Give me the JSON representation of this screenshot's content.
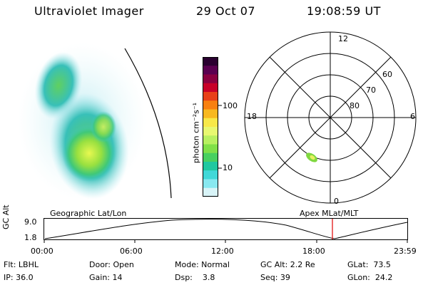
{
  "header": {
    "title": "Ultraviolet Imager",
    "date": "29 Oct 07",
    "time": "19:08:59 UT"
  },
  "colorbar": {
    "label": "photon cm⁻²s⁻¹",
    "ticks": [
      "100",
      "10"
    ],
    "colors": [
      "#2a0030",
      "#5a0050",
      "#8a0040",
      "#c80028",
      "#e84018",
      "#f88010",
      "#f8b820",
      "#f8e848",
      "#e8f870",
      "#b8f060",
      "#80e048",
      "#48d060",
      "#20c8a0",
      "#40d8d8",
      "#88e8f0",
      "#d8f4f8"
    ]
  },
  "polar": {
    "hour_labels": {
      "top": "12",
      "left": "18",
      "right": "6",
      "bottom": "0"
    },
    "lat_labels": [
      "60",
      "70",
      "80"
    ]
  },
  "geo_label": "Geographic Lat/Lon",
  "apex_label": "Apex MLat/MLT",
  "timeline": {
    "y_axis_label": "GC Alt",
    "y_ticks": [
      "9.0",
      "1.8"
    ],
    "x_ticks": [
      "00:00",
      "06:00",
      "12:00",
      "18:00",
      "23:59"
    ],
    "current_time_color": "#e00000"
  },
  "info": {
    "flt": "Flt: LBHL",
    "ip": "IP: 36.0",
    "door": "Door: Open",
    "gain": "Gain: 14",
    "mode": "Mode: Normal",
    "dsp": "Dsp:    3.8",
    "gcalt": "GC Alt: 2.2 Re",
    "seq": "Seq: 39",
    "glat": "GLat:  73.5",
    "glon": "GLon:  24.2"
  }
}
